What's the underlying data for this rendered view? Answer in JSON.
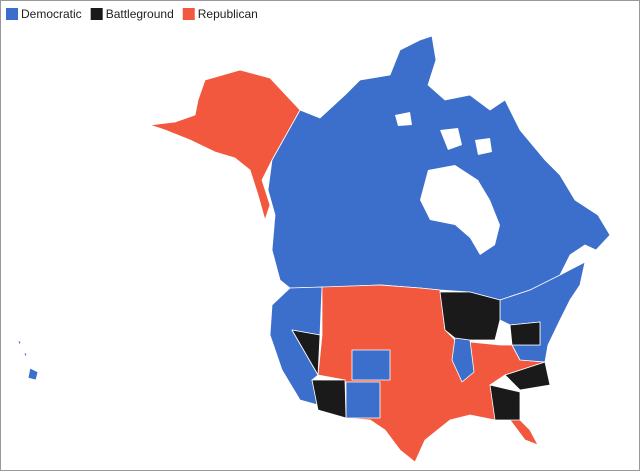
{
  "legend": [
    {
      "label": "Democratic",
      "color": "#3b6fcb"
    },
    {
      "label": "Battleground",
      "color": "#1a1a1a"
    },
    {
      "label": "Republican",
      "color": "#f2583e"
    }
  ]
}
